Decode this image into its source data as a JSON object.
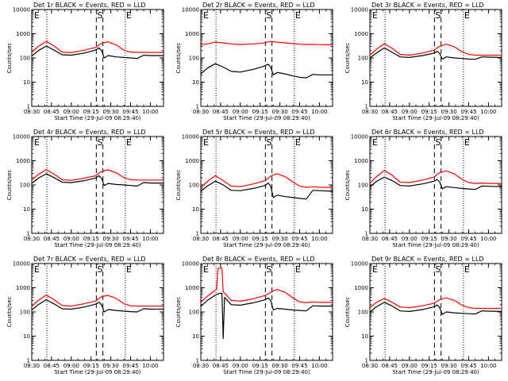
{
  "figure": {
    "xlabel": "Start Time (29-Jul-09 08:29:40)",
    "ylabel": "Counts/sec",
    "x_ticks": [
      "08:30",
      "08:45",
      "09:00",
      "09:15",
      "09:30",
      "09:45",
      "10:00"
    ],
    "y_ticks": [
      "1",
      "10",
      "100",
      "1000",
      "10000"
    ],
    "marker_labels": {
      "start": "S",
      "end": "E"
    },
    "colors": {
      "events": "#000000",
      "lld": "#ff0000",
      "axes": "#000000",
      "background": "#ffffff"
    }
  },
  "chart_data": [
    {
      "type": "line",
      "title": "Det 1r BLACK = Events, RED = LLD",
      "x_unit": "minutes after 08:30",
      "xlim": [
        0,
        100
      ],
      "ylim": [
        1,
        10000
      ],
      "y_scale": "log",
      "dotted_lines_x": [
        11.5,
        71
      ],
      "dashed_lines_x": [
        49,
        54
      ],
      "x": [
        0,
        5,
        11,
        17,
        23,
        30,
        40,
        47,
        49,
        51,
        53,
        55,
        58,
        64,
        70,
        75,
        80,
        85,
        90,
        100
      ],
      "series": [
        {
          "name": "LLD",
          "color": "#ff0000",
          "values": [
            170,
            300,
            480,
            310,
            175,
            165,
            210,
            260,
            275,
            350,
            400,
            430,
            460,
            350,
            210,
            175,
            170,
            170,
            170,
            170
          ]
        },
        {
          "name": "Events",
          "color": "#000000",
          "values": [
            120,
            200,
            310,
            210,
            135,
            130,
            160,
            200,
            220,
            260,
            200,
            100,
            125,
            110,
            105,
            100,
            95,
            130,
            125,
            125
          ]
        }
      ]
    },
    {
      "type": "line",
      "title": "Det 2r BLACK = Events, RED = LLD",
      "x_unit": "minutes after 08:30",
      "xlim": [
        0,
        100
      ],
      "ylim": [
        1,
        10000
      ],
      "y_scale": "log",
      "dotted_lines_x": [
        11.5,
        71
      ],
      "dashed_lines_x": [
        49,
        54
      ],
      "x": [
        0,
        5,
        11,
        17,
        23,
        30,
        40,
        47,
        49,
        51,
        53,
        55,
        58,
        64,
        70,
        75,
        80,
        85,
        90,
        100
      ],
      "series": [
        {
          "name": "LLD",
          "color": "#ff0000",
          "values": [
            350,
            380,
            450,
            420,
            380,
            360,
            380,
            410,
            430,
            460,
            480,
            470,
            450,
            420,
            390,
            370,
            360,
            360,
            355,
            350
          ]
        },
        {
          "name": "Events",
          "color": "#000000",
          "values": [
            22,
            38,
            58,
            42,
            28,
            26,
            34,
            44,
            48,
            55,
            42,
            20,
            25,
            22,
            18,
            16,
            15,
            21,
            20,
            20
          ]
        }
      ]
    },
    {
      "type": "line",
      "title": "Det 3r BLACK = Events, RED = LLD",
      "x_unit": "minutes after 08:30",
      "xlim": [
        0,
        100
      ],
      "ylim": [
        1,
        10000
      ],
      "y_scale": "log",
      "dotted_lines_x": [
        11.5,
        71
      ],
      "dashed_lines_x": [
        49,
        54
      ],
      "x": [
        0,
        5,
        11,
        17,
        23,
        30,
        40,
        47,
        49,
        51,
        53,
        55,
        58,
        64,
        70,
        75,
        80,
        85,
        90,
        100
      ],
      "series": [
        {
          "name": "LLD",
          "color": "#ff0000",
          "values": [
            130,
            230,
            390,
            250,
            140,
            130,
            160,
            200,
            210,
            260,
            300,
            330,
            370,
            290,
            180,
            140,
            130,
            130,
            130,
            130
          ]
        },
        {
          "name": "Events",
          "color": "#000000",
          "values": [
            100,
            160,
            260,
            170,
            110,
            105,
            125,
            150,
            160,
            190,
            150,
            90,
            110,
            100,
            95,
            90,
            88,
            110,
            108,
            105
          ]
        }
      ]
    },
    {
      "type": "line",
      "title": "Det 4r BLACK = Events, RED = LLD",
      "x_unit": "minutes after 08:30",
      "xlim": [
        0,
        100
      ],
      "ylim": [
        1,
        10000
      ],
      "y_scale": "log",
      "dotted_lines_x": [
        11.5,
        71
      ],
      "dashed_lines_x": [
        49,
        54
      ],
      "x": [
        0,
        5,
        11,
        17,
        23,
        30,
        40,
        47,
        49,
        51,
        53,
        55,
        58,
        64,
        70,
        75,
        80,
        85,
        90,
        100
      ],
      "series": [
        {
          "name": "LLD",
          "color": "#ff0000",
          "values": [
            160,
            270,
            430,
            280,
            165,
            155,
            190,
            230,
            250,
            310,
            360,
            390,
            420,
            320,
            200,
            165,
            160,
            160,
            160,
            160
          ]
        },
        {
          "name": "Events",
          "color": "#000000",
          "values": [
            115,
            190,
            290,
            200,
            130,
            125,
            150,
            185,
            200,
            240,
            185,
            95,
            115,
            105,
            100,
            95,
            90,
            125,
            120,
            120
          ]
        }
      ]
    },
    {
      "type": "line",
      "title": "Det 5r BLACK = Events, RED = LLD",
      "x_unit": "minutes after 08:30",
      "xlim": [
        0,
        100
      ],
      "ylim": [
        1,
        10000
      ],
      "y_scale": "log",
      "dotted_lines_x": [
        11.5,
        71
      ],
      "dashed_lines_x": [
        49,
        54
      ],
      "x": [
        0,
        5,
        11,
        17,
        23,
        30,
        40,
        47,
        49,
        51,
        53,
        55,
        58,
        64,
        70,
        75,
        80,
        85,
        90,
        100
      ],
      "series": [
        {
          "name": "LLD",
          "color": "#ff0000",
          "values": [
            80,
            140,
            240,
            150,
            90,
            85,
            110,
            140,
            150,
            190,
            230,
            260,
            290,
            220,
            130,
            90,
            80,
            85,
            80,
            80
          ]
        },
        {
          "name": "Events",
          "color": "#000000",
          "values": [
            55,
            90,
            145,
            100,
            60,
            58,
            72,
            90,
            95,
            120,
            90,
            30,
            38,
            33,
            30,
            28,
            26,
            60,
            58,
            55
          ]
        }
      ]
    },
    {
      "type": "line",
      "title": "Det 6r BLACK = Events, RED = LLD",
      "x_unit": "minutes after 08:30",
      "xlim": [
        0,
        100
      ],
      "ylim": [
        1,
        10000
      ],
      "y_scale": "log",
      "dotted_lines_x": [
        11.5,
        71
      ],
      "dashed_lines_x": [
        49,
        54
      ],
      "x": [
        0,
        5,
        11,
        17,
        23,
        30,
        40,
        47,
        49,
        51,
        53,
        55,
        58,
        64,
        70,
        75,
        80,
        85,
        90,
        100
      ],
      "series": [
        {
          "name": "LLD",
          "color": "#ff0000",
          "values": [
            120,
            220,
            400,
            250,
            130,
            125,
            160,
            200,
            215,
            270,
            320,
            350,
            380,
            290,
            170,
            125,
            115,
            120,
            115,
            115
          ]
        },
        {
          "name": "Events",
          "color": "#000000",
          "values": [
            85,
            140,
            210,
            150,
            95,
            90,
            110,
            135,
            145,
            170,
            130,
            70,
            85,
            78,
            72,
            68,
            65,
            90,
            88,
            85
          ]
        }
      ]
    },
    {
      "type": "line",
      "title": "Det 7r BLACK = Events, RED = LLD",
      "x_unit": "minutes after 08:30",
      "xlim": [
        0,
        100
      ],
      "ylim": [
        1,
        10000
      ],
      "y_scale": "log",
      "dotted_lines_x": [
        11.5,
        71
      ],
      "dashed_lines_x": [
        49,
        54
      ],
      "x": [
        0,
        5,
        11,
        17,
        23,
        30,
        40,
        47,
        49,
        51,
        53,
        55,
        58,
        64,
        70,
        75,
        80,
        85,
        90,
        100
      ],
      "series": [
        {
          "name": "LLD",
          "color": "#ff0000",
          "values": [
            170,
            300,
            500,
            320,
            185,
            175,
            220,
            270,
            290,
            360,
            420,
            450,
            480,
            360,
            220,
            180,
            175,
            175,
            175,
            175
          ]
        },
        {
          "name": "Events",
          "color": "#000000",
          "values": [
            120,
            200,
            320,
            215,
            135,
            130,
            160,
            200,
            215,
            255,
            195,
            100,
            125,
            115,
            108,
            103,
            100,
            135,
            130,
            130
          ]
        }
      ]
    },
    {
      "type": "line",
      "title": "Det 8r BLACK = Events, RED = LLD",
      "x_unit": "minutes after 08:30",
      "xlim": [
        0,
        100
      ],
      "ylim": [
        1,
        10000
      ],
      "y_scale": "log",
      "dotted_lines_x": [
        11.5,
        71
      ],
      "dashed_lines_x": [
        49,
        54
      ],
      "x": [
        0,
        5,
        11,
        12,
        13,
        14,
        16,
        17,
        18,
        23,
        30,
        40,
        47,
        49,
        51,
        53,
        55,
        58,
        64,
        70,
        75,
        80,
        85,
        90,
        100
      ],
      "series": [
        {
          "name": "LLD",
          "color": "#ff0000",
          "values": [
            250,
            450,
            800,
            850,
            6000,
            6500,
            6500,
            700,
            600,
            300,
            280,
            350,
            450,
            480,
            550,
            650,
            750,
            850,
            650,
            380,
            260,
            240,
            260,
            250,
            250
          ]
        },
        {
          "name": "Events",
          "color": "#000000",
          "values": [
            170,
            300,
            500,
            520,
            550,
            580,
            600,
            8,
            400,
            200,
            190,
            240,
            300,
            320,
            380,
            300,
            120,
            140,
            130,
            120,
            115,
            110,
            180,
            175,
            175
          ]
        }
      ]
    },
    {
      "type": "line",
      "title": "Det 9r BLACK = Events, RED = LLD",
      "x_unit": "minutes after 08:30",
      "xlim": [
        0,
        100
      ],
      "ylim": [
        1,
        10000
      ],
      "y_scale": "log",
      "dotted_lines_x": [
        11.5,
        71
      ],
      "dashed_lines_x": [
        49,
        54
      ],
      "x": [
        0,
        5,
        11,
        17,
        23,
        30,
        40,
        47,
        49,
        51,
        53,
        55,
        58,
        64,
        70,
        75,
        80,
        85,
        90,
        100
      ],
      "series": [
        {
          "name": "LLD",
          "color": "#ff0000",
          "values": [
            150,
            250,
            360,
            250,
            160,
            150,
            180,
            220,
            235,
            280,
            320,
            350,
            380,
            300,
            190,
            150,
            140,
            140,
            140,
            140
          ]
        },
        {
          "name": "Events",
          "color": "#000000",
          "values": [
            100,
            165,
            250,
            175,
            110,
            105,
            125,
            155,
            165,
            195,
            150,
            80,
            100,
            92,
            88,
            85,
            82,
            110,
            108,
            105
          ]
        }
      ]
    }
  ]
}
